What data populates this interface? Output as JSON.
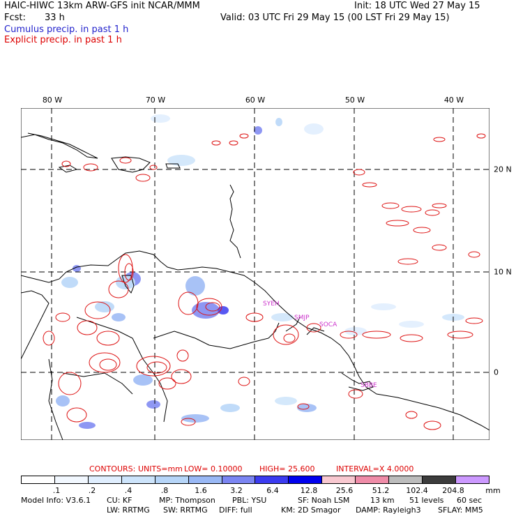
{
  "header": {
    "title": "HAIC-HIWC 13km ARW-GFS init   NCAR/MMM",
    "init": "Init: 18 UTC Wed 27 May 15",
    "fcst_label": "Fcst:",
    "fcst_value": "33 h",
    "valid": "Valid: 03 UTC Fri 29 May 15 (00 LST Fri 29 May 15)",
    "legend_cumulus": "Cumulus precip. in past 1 h",
    "legend_explicit": "Explicit precip. in past 1 h"
  },
  "map": {
    "lon_labels": [
      "80 W",
      "70 W",
      "60 W",
      "50 W",
      "40 W"
    ],
    "lat_labels": [
      "20 N",
      "10 N",
      "0"
    ],
    "stations": [
      "SYEH",
      "SMJP",
      "SOCA",
      "SBBE"
    ],
    "station_color": "#cc33cc",
    "contour_color": "#dd1111",
    "coast_color": "#000000"
  },
  "contours_info": {
    "label": "CONTOURS:",
    "units": "UNITS=mm",
    "low": "LOW= 0.10000",
    "high": "HIGH=  25.600",
    "interval": "INTERVAL=X  4.0000"
  },
  "colorbar": {
    "ticks": [
      ".1",
      ".2",
      ".4",
      ".8",
      "1.6",
      "3.2",
      "6.4",
      "12.8",
      "25.6",
      "51.2",
      "102.4",
      "204.8"
    ],
    "unit": "mm",
    "colors": [
      "#ffffff",
      "#f2f8ff",
      "#e0eefe",
      "#cde4fb",
      "#b6d5f8",
      "#99b8f5",
      "#7b85f2",
      "#3b3bf0",
      "#0000ee",
      "#f8c8d0",
      "#ef8ca8",
      "#bcbcbc",
      "#3c3c3c",
      "#cc99ff"
    ]
  },
  "footer": {
    "line1": [
      "Model Info: V3.6.1",
      "CU: KF",
      "MP: Thompson",
      "PBL: YSU",
      "SF: Noah LSM",
      "13 km",
      "51 levels",
      "60 sec"
    ],
    "line2": [
      "LW: RRTMG",
      "SW: RRTMG",
      "DIFF: full",
      "KM: 2D Smagor",
      "DAMP: Rayleigh3",
      "SFLAY: MM5"
    ]
  }
}
